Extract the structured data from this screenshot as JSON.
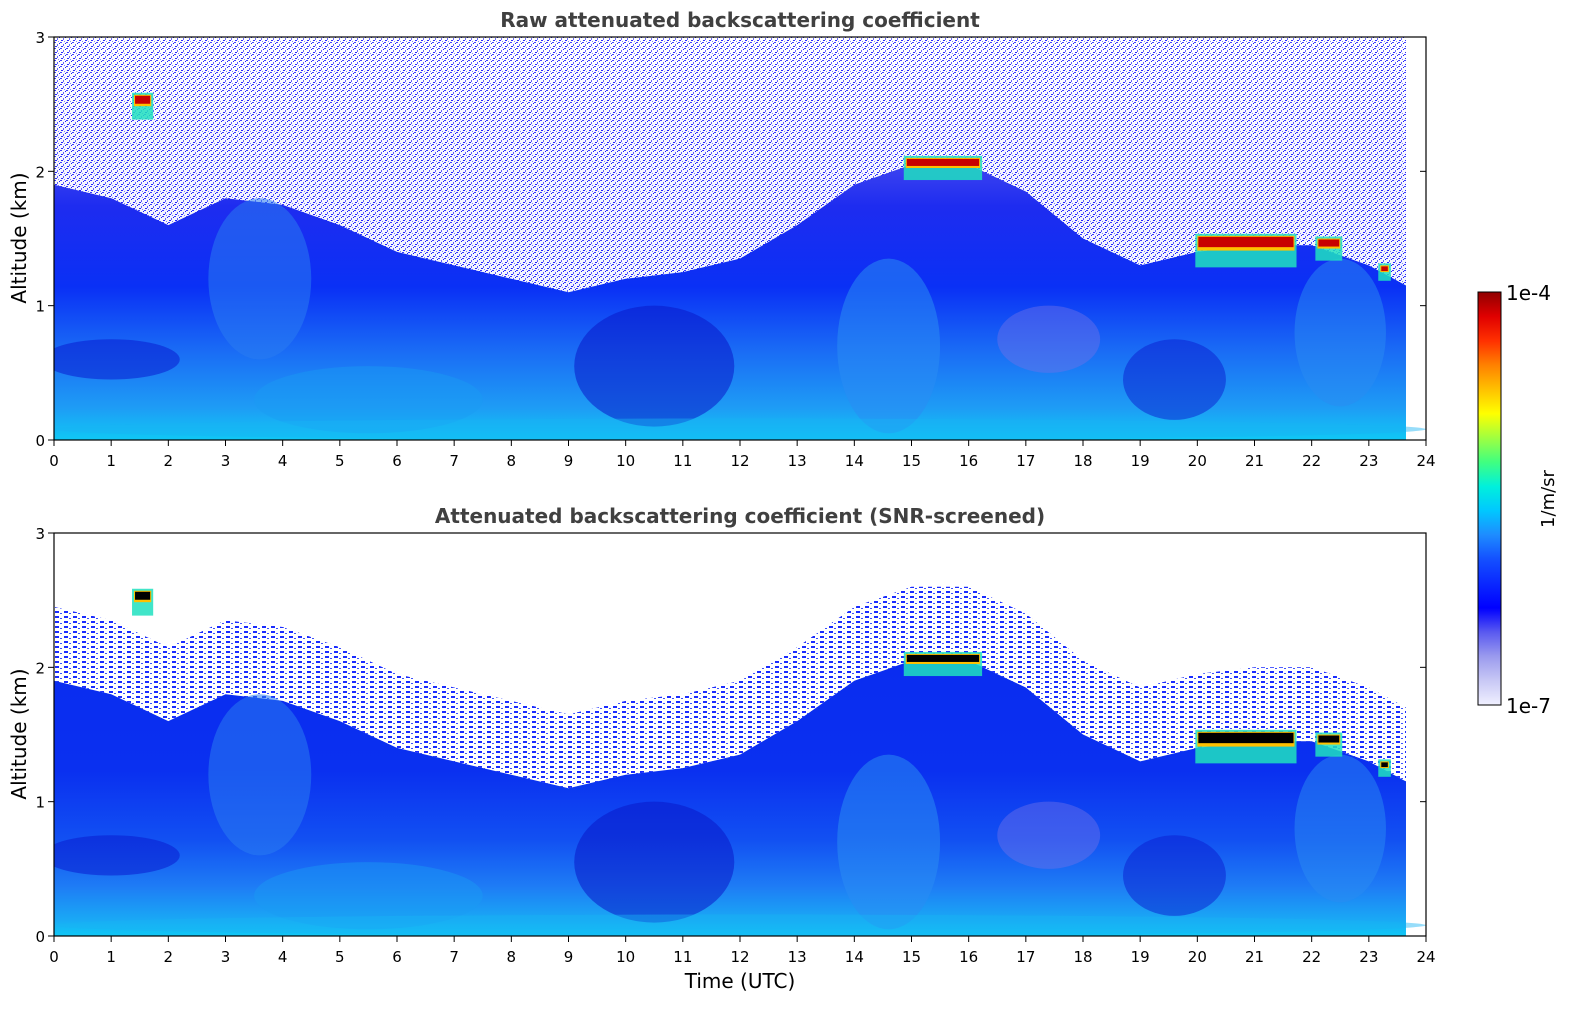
{
  "chart_data": [
    {
      "type": "heatmap",
      "title": "Raw attenuated backscattering coefficient",
      "xlabel": "",
      "ylabel": "Altitude (km)",
      "xlim": [
        0,
        24
      ],
      "ylim": [
        0,
        3
      ],
      "xticks": [
        "0",
        "1",
        "2",
        "3",
        "4",
        "5",
        "6",
        "7",
        "8",
        "9",
        "10",
        "11",
        "12",
        "13",
        "14",
        "15",
        "16",
        "17",
        "18",
        "19",
        "20",
        "21",
        "22",
        "23",
        "24"
      ],
      "yticks": [
        "0",
        "1",
        "2",
        "3"
      ],
      "data_end_time": 23.65,
      "aerosol_layer_top_km": [
        [
          0,
          1.9
        ],
        [
          1,
          1.8
        ],
        [
          2,
          1.6
        ],
        [
          3,
          1.8
        ],
        [
          4,
          1.75
        ],
        [
          5,
          1.6
        ],
        [
          6,
          1.4
        ],
        [
          7,
          1.3
        ],
        [
          8,
          1.2
        ],
        [
          9,
          1.1
        ],
        [
          10,
          1.2
        ],
        [
          11,
          1.25
        ],
        [
          12,
          1.35
        ],
        [
          13,
          1.6
        ],
        [
          14,
          1.9
        ],
        [
          15,
          2.05
        ],
        [
          16,
          2.05
        ],
        [
          17,
          1.85
        ],
        [
          18,
          1.5
        ],
        [
          19,
          1.3
        ],
        [
          20,
          1.4
        ],
        [
          21,
          1.45
        ],
        [
          22,
          1.45
        ],
        [
          23,
          1.3
        ],
        [
          23.65,
          1.15
        ]
      ],
      "cloud_features": [
        {
          "t0": 1.4,
          "t1": 1.7,
          "z0": 2.4,
          "z1": 2.57
        },
        {
          "t0": 14.9,
          "t1": 16.2,
          "z0": 1.95,
          "z1": 2.1
        },
        {
          "t0": 20.0,
          "t1": 21.7,
          "z0": 1.3,
          "z1": 1.52
        },
        {
          "t0": 22.1,
          "t1": 22.5,
          "z0": 1.35,
          "z1": 1.5
        },
        {
          "t0": 23.2,
          "t1": 23.35,
          "z0": 1.2,
          "z1": 1.3
        }
      ]
    },
    {
      "type": "heatmap",
      "title": "Attenuated backscattering coefficient (SNR-screened)",
      "xlabel": "Time (UTC)",
      "ylabel": "Altitude (km)",
      "xlim": [
        0,
        24
      ],
      "ylim": [
        0,
        3
      ],
      "xticks": [
        "0",
        "1",
        "2",
        "3",
        "4",
        "5",
        "6",
        "7",
        "8",
        "9",
        "10",
        "11",
        "12",
        "13",
        "14",
        "15",
        "16",
        "17",
        "18",
        "19",
        "20",
        "21",
        "22",
        "23",
        "24"
      ],
      "yticks": [
        "0",
        "1",
        "2",
        "3"
      ],
      "data_end_time": 23.65
    }
  ],
  "colorbar": {
    "min_label": "1e-7",
    "max_label": "1e-4",
    "unit_label": "1/m/sr",
    "colors": [
      "#f0f0ff",
      "#c8c8f5",
      "#9a9aee",
      "#5a5af0",
      "#0000ff",
      "#0a28ff",
      "#1450ff",
      "#1e8cff",
      "#00c8ff",
      "#00f0dc",
      "#40ff80",
      "#a0ff40",
      "#ffff00",
      "#ffc000",
      "#ff8000",
      "#ff3000",
      "#e00000",
      "#900000"
    ]
  }
}
